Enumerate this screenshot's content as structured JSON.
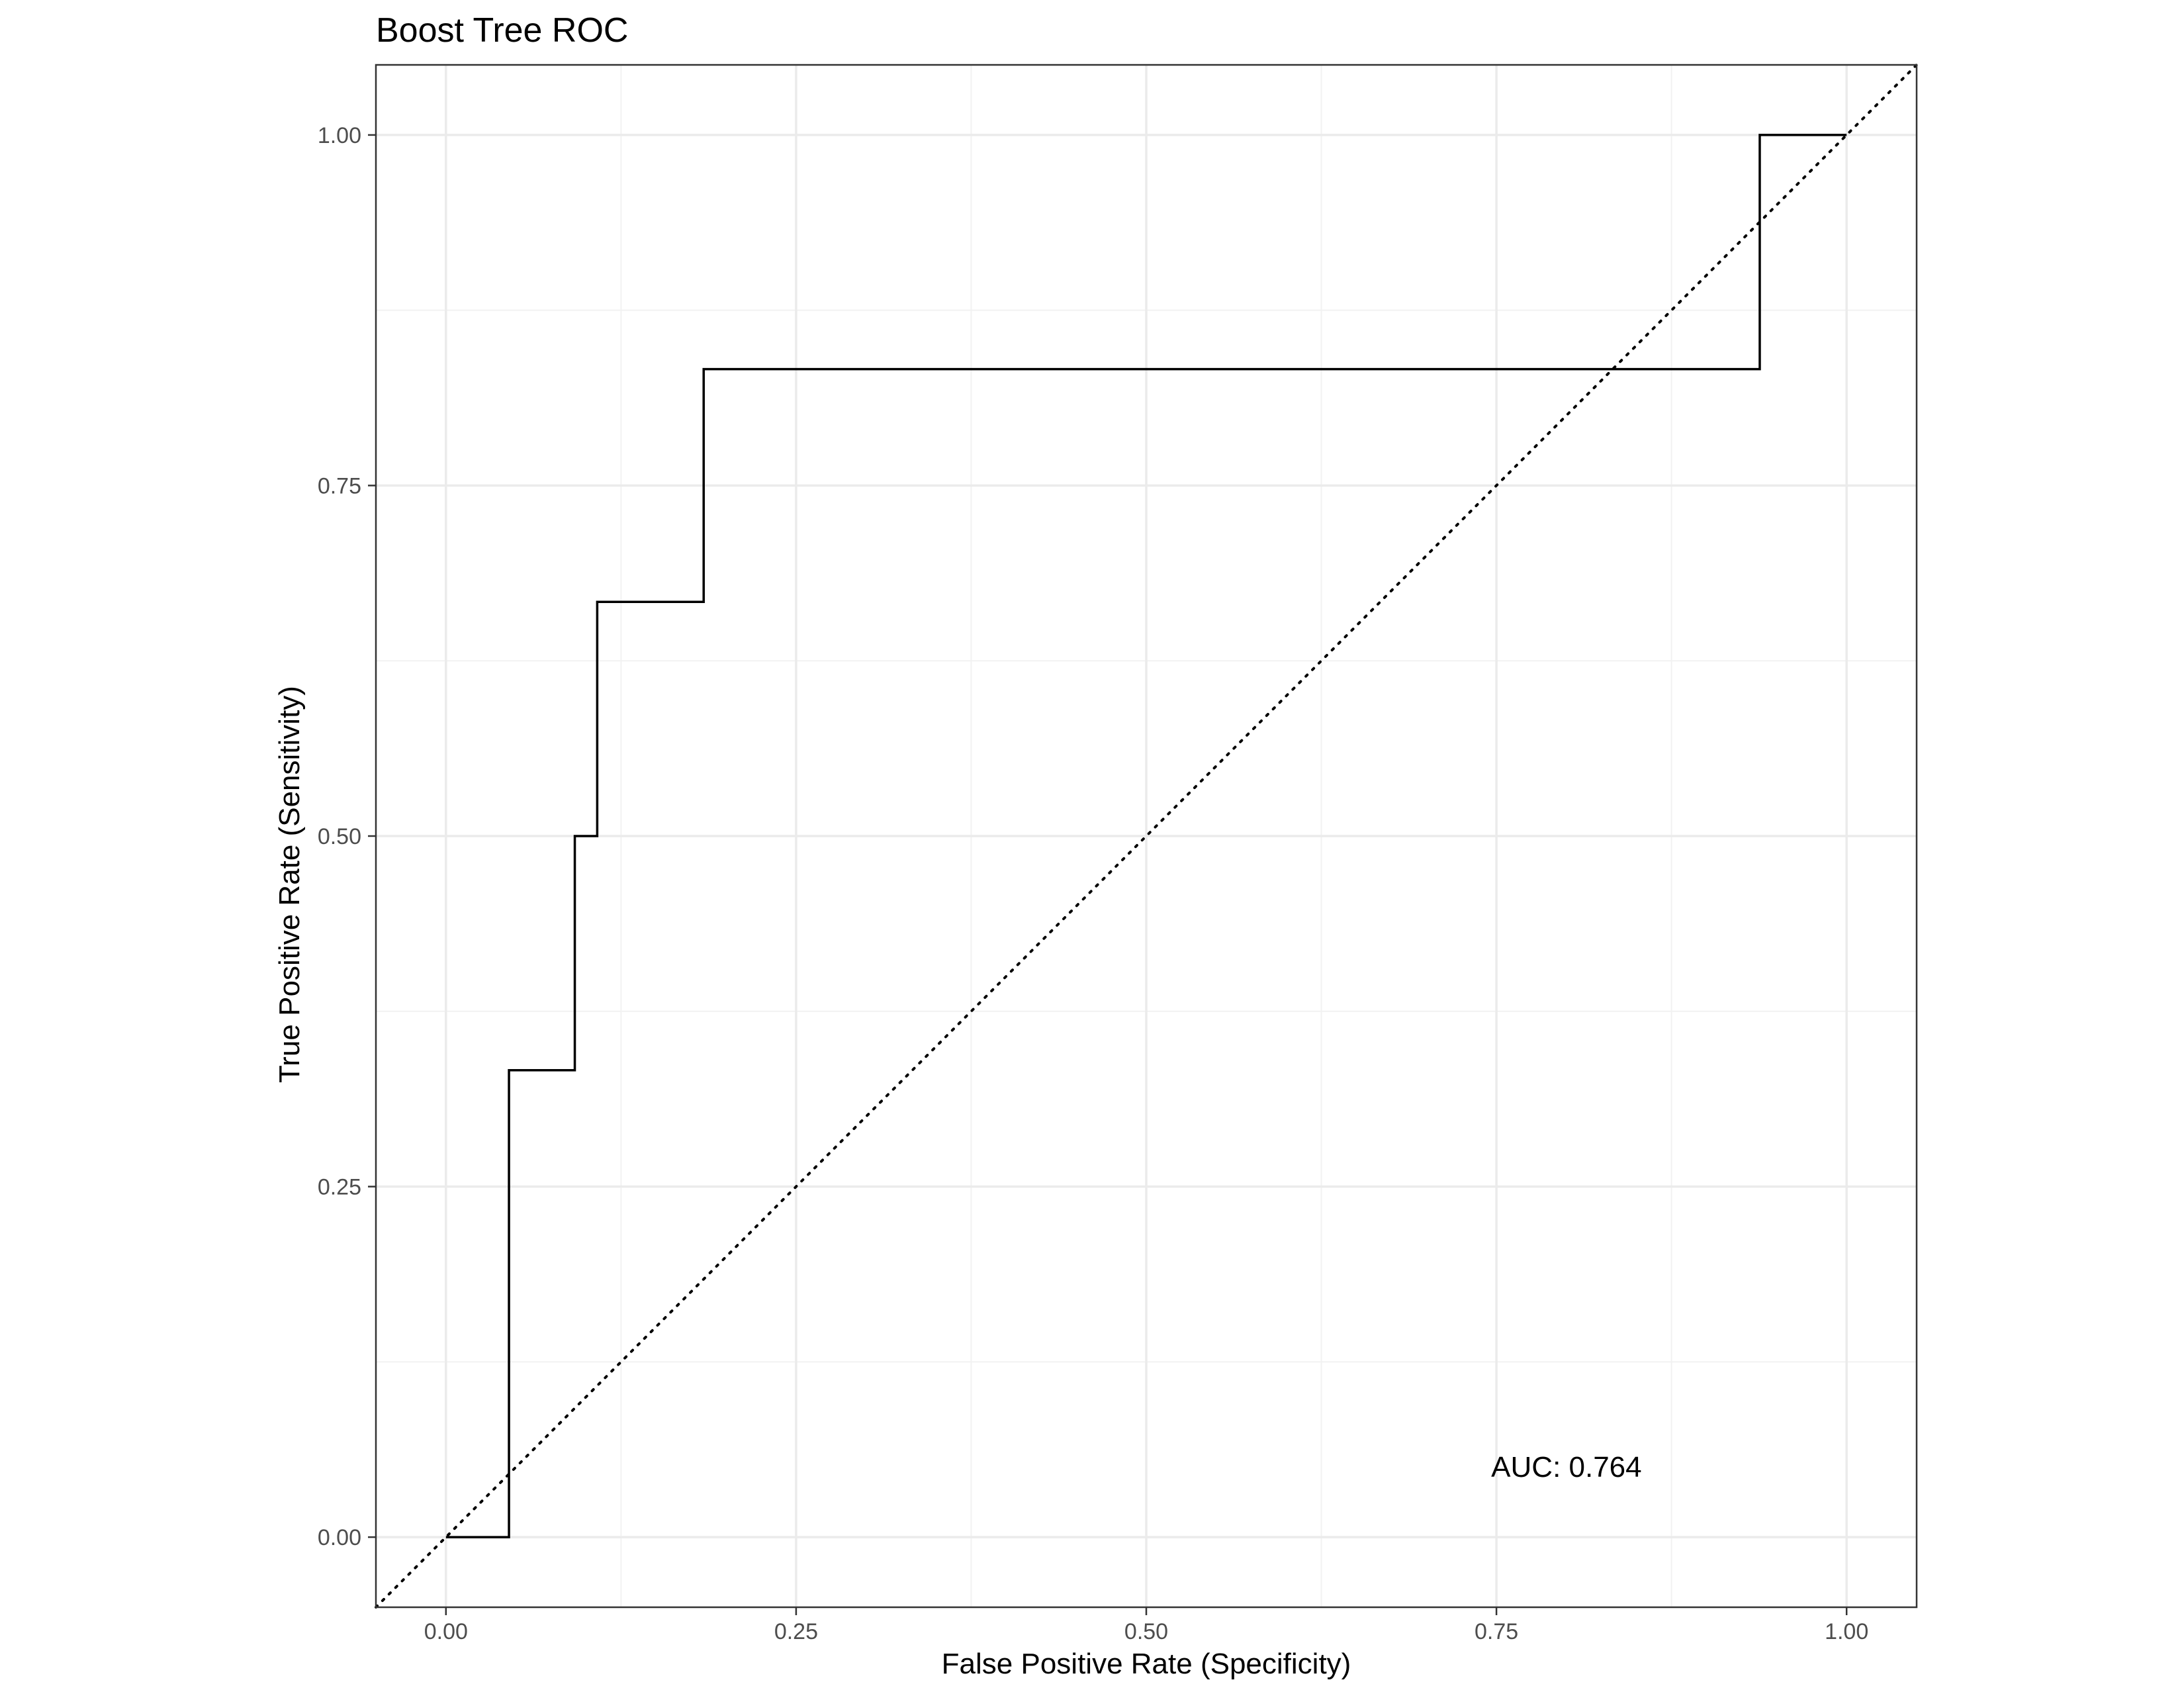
{
  "chart_data": {
    "type": "line",
    "title": "Boost Tree ROC",
    "xlabel": "False Positive Rate (Specificity)",
    "ylabel": "True Positive Rate (Sensitivity)",
    "xlim": [
      -0.05,
      1.05
    ],
    "ylim": [
      -0.05,
      1.05
    ],
    "x_ticks": [
      0.0,
      0.25,
      0.5,
      0.75,
      1.0
    ],
    "x_tick_labels": [
      "0.00",
      "0.25",
      "0.50",
      "0.75",
      "1.00"
    ],
    "y_ticks": [
      0.0,
      0.25,
      0.5,
      0.75,
      1.0
    ],
    "y_tick_labels": [
      "0.00",
      "0.25",
      "0.50",
      "0.75",
      "1.00"
    ],
    "grid": true,
    "series": [
      {
        "name": "ROC curve",
        "style": "step",
        "color": "#000000",
        "points": [
          [
            0.0,
            0.0
          ],
          [
            0.045,
            0.0
          ],
          [
            0.045,
            0.333
          ],
          [
            0.092,
            0.333
          ],
          [
            0.092,
            0.5
          ],
          [
            0.108,
            0.5
          ],
          [
            0.108,
            0.667
          ],
          [
            0.184,
            0.667
          ],
          [
            0.184,
            0.833
          ],
          [
            0.938,
            0.833
          ],
          [
            0.938,
            1.0
          ],
          [
            1.0,
            1.0
          ]
        ]
      },
      {
        "name": "Chance line",
        "style": "dotted",
        "color": "#000000",
        "points": [
          [
            -0.05,
            -0.05
          ],
          [
            1.05,
            1.05
          ]
        ]
      }
    ],
    "annotations": [
      {
        "text": "AUC: 0.764",
        "x": 0.8,
        "y": 0.05
      }
    ]
  },
  "colors": {
    "panel_border": "#333333",
    "grid_major": "#ebebeb",
    "grid_minor": "#f2f2f2",
    "tick_text": "#4d4d4d",
    "line": "#000000"
  }
}
